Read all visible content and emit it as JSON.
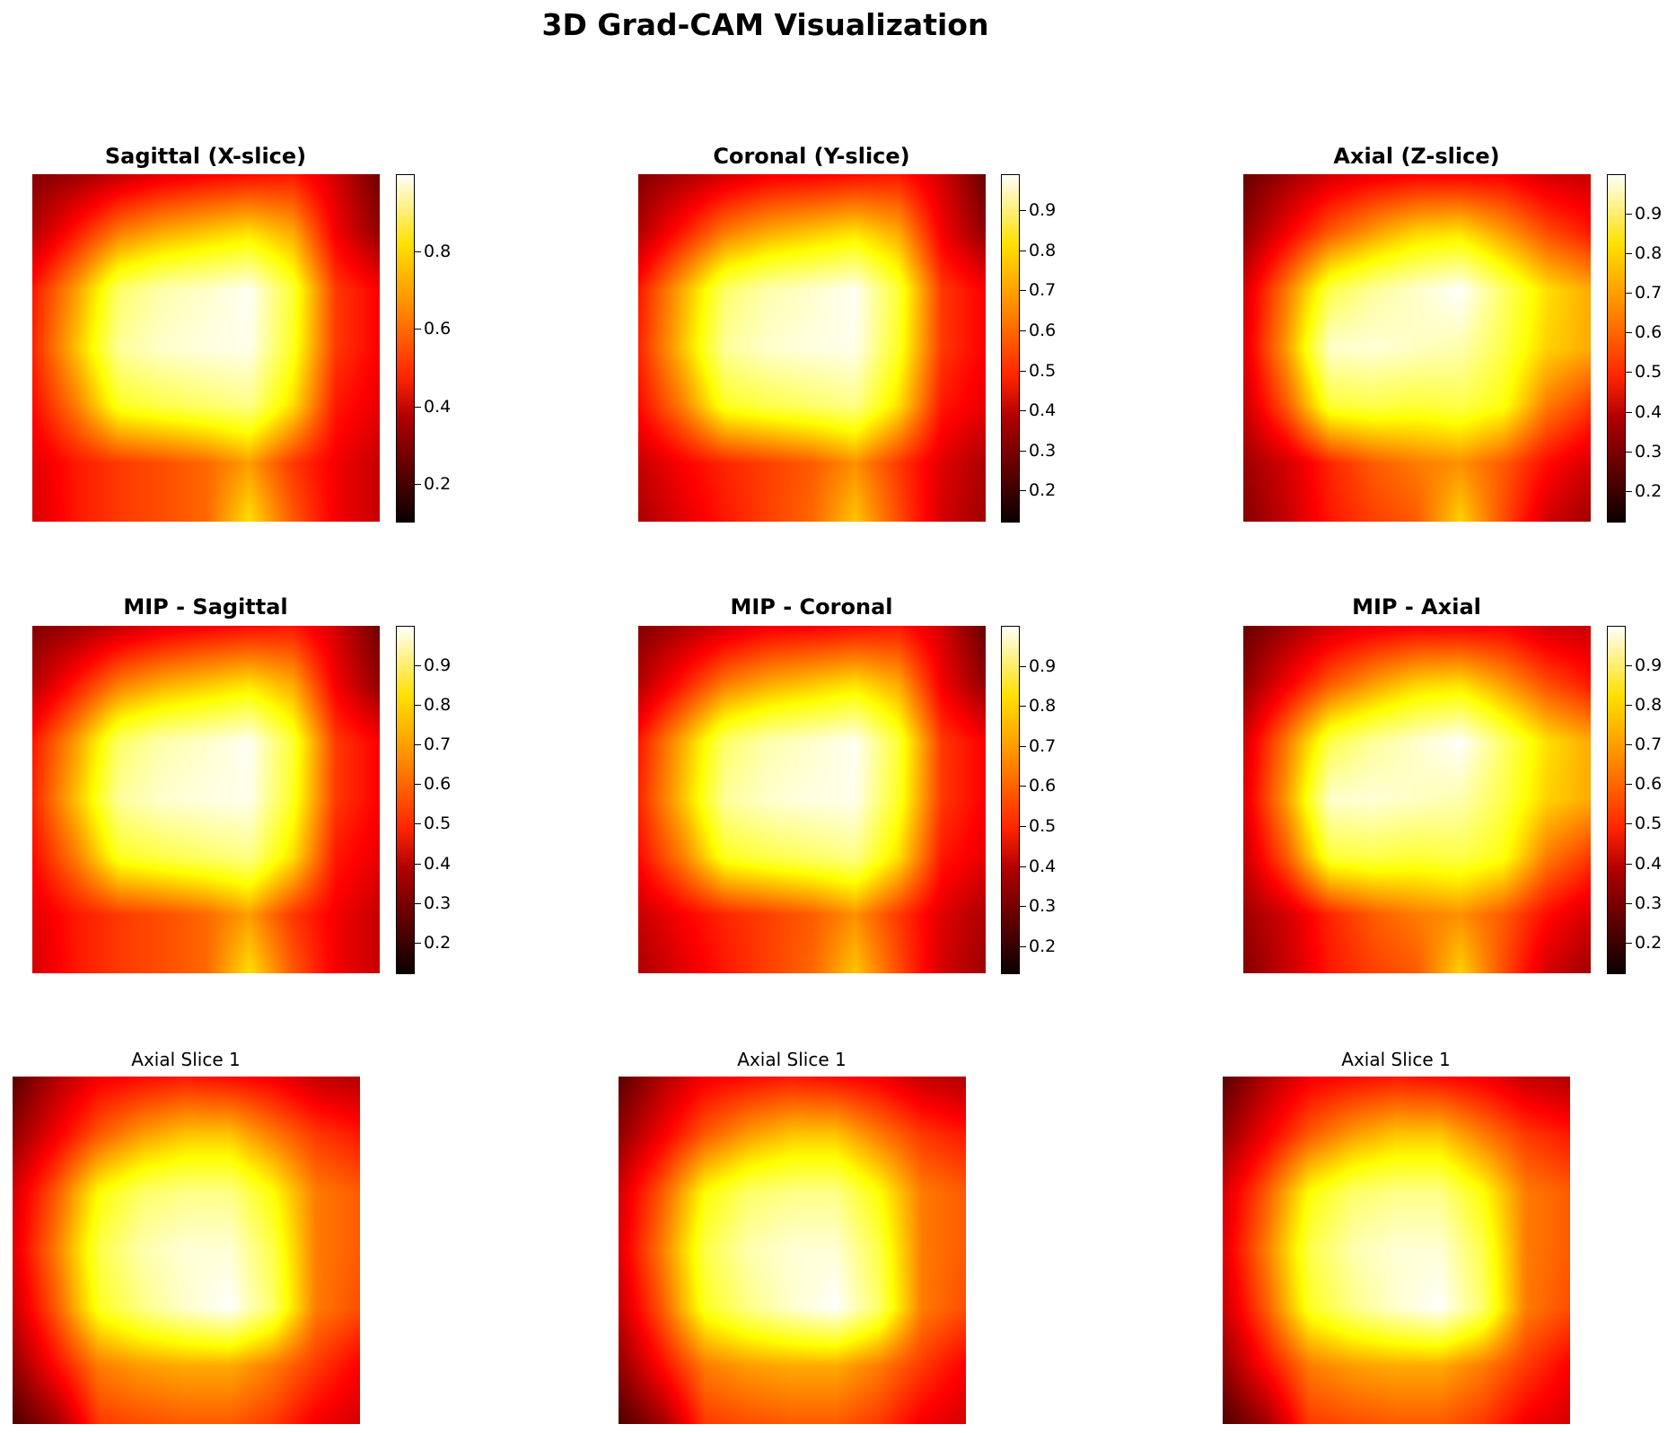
{
  "figure": {
    "title": "3D Grad-CAM Visualization"
  },
  "chart_data": [
    {
      "type": "heatmap",
      "title": "Sagittal (X-slice)",
      "colormap": "hot",
      "title_style": "bold",
      "colorbar": {
        "min": 0.1,
        "max": 1.0,
        "ticks": [
          "0.2",
          "0.4",
          "0.6",
          "0.8"
        ]
      },
      "values": [
        [
          0.18,
          0.22,
          0.28,
          0.33,
          0.36,
          0.38,
          0.4,
          0.3,
          0.15
        ],
        [
          0.25,
          0.4,
          0.55,
          0.62,
          0.66,
          0.7,
          0.62,
          0.35,
          0.2
        ],
        [
          0.4,
          0.6,
          0.85,
          0.92,
          0.95,
          0.99,
          0.8,
          0.45,
          0.36
        ],
        [
          0.42,
          0.65,
          0.9,
          0.95,
          0.97,
          0.98,
          0.78,
          0.45,
          0.36
        ],
        [
          0.38,
          0.55,
          0.78,
          0.82,
          0.85,
          0.88,
          0.7,
          0.4,
          0.33
        ],
        [
          0.32,
          0.4,
          0.45,
          0.48,
          0.52,
          0.6,
          0.45,
          0.35,
          0.28
        ],
        [
          0.3,
          0.4,
          0.45,
          0.48,
          0.52,
          0.7,
          0.5,
          0.35,
          0.28
        ]
      ]
    },
    {
      "type": "heatmap",
      "title": "Coronal (Y-slice)",
      "colormap": "hot",
      "title_style": "bold",
      "colorbar": {
        "min": 0.12,
        "max": 0.99,
        "ticks": [
          "0.2",
          "0.3",
          "0.4",
          "0.5",
          "0.6",
          "0.7",
          "0.8",
          "0.9"
        ]
      },
      "values": [
        [
          0.18,
          0.24,
          0.3,
          0.35,
          0.36,
          0.38,
          0.4,
          0.3,
          0.14
        ],
        [
          0.25,
          0.4,
          0.55,
          0.62,
          0.66,
          0.7,
          0.62,
          0.35,
          0.2
        ],
        [
          0.4,
          0.62,
          0.85,
          0.92,
          0.95,
          0.99,
          0.8,
          0.45,
          0.36
        ],
        [
          0.42,
          0.65,
          0.9,
          0.95,
          0.97,
          0.98,
          0.78,
          0.45,
          0.36
        ],
        [
          0.38,
          0.55,
          0.78,
          0.82,
          0.85,
          0.88,
          0.7,
          0.4,
          0.33
        ],
        [
          0.28,
          0.36,
          0.42,
          0.46,
          0.5,
          0.58,
          0.45,
          0.32,
          0.24
        ],
        [
          0.24,
          0.32,
          0.4,
          0.46,
          0.52,
          0.66,
          0.48,
          0.3,
          0.22
        ]
      ]
    },
    {
      "type": "heatmap",
      "title": "Axial (Z-slice)",
      "colormap": "hot",
      "title_style": "bold",
      "colorbar": {
        "min": 0.12,
        "max": 1.0,
        "ticks": [
          "0.2",
          "0.3",
          "0.4",
          "0.5",
          "0.6",
          "0.7",
          "0.8",
          "0.9"
        ]
      },
      "values": [
        [
          0.14,
          0.22,
          0.3,
          0.34,
          0.36,
          0.36,
          0.36,
          0.3,
          0.28
        ],
        [
          0.2,
          0.35,
          0.5,
          0.6,
          0.68,
          0.7,
          0.6,
          0.48,
          0.4
        ],
        [
          0.3,
          0.55,
          0.82,
          0.9,
          0.95,
          1.0,
          0.85,
          0.7,
          0.62
        ],
        [
          0.32,
          0.6,
          0.95,
          0.96,
          0.94,
          0.92,
          0.82,
          0.68,
          0.62
        ],
        [
          0.28,
          0.5,
          0.8,
          0.82,
          0.8,
          0.82,
          0.76,
          0.55,
          0.45
        ],
        [
          0.22,
          0.3,
          0.42,
          0.5,
          0.55,
          0.58,
          0.5,
          0.38,
          0.3
        ],
        [
          0.18,
          0.28,
          0.4,
          0.46,
          0.5,
          0.68,
          0.48,
          0.3,
          0.22
        ]
      ]
    },
    {
      "type": "heatmap",
      "title": "MIP - Sagittal",
      "colormap": "hot",
      "title_style": "bold",
      "colorbar": {
        "min": 0.12,
        "max": 1.0,
        "ticks": [
          "0.2",
          "0.3",
          "0.4",
          "0.5",
          "0.6",
          "0.7",
          "0.8",
          "0.9"
        ]
      },
      "values": [
        [
          0.18,
          0.22,
          0.28,
          0.33,
          0.36,
          0.38,
          0.4,
          0.3,
          0.15
        ],
        [
          0.25,
          0.4,
          0.55,
          0.62,
          0.66,
          0.7,
          0.62,
          0.35,
          0.2
        ],
        [
          0.4,
          0.6,
          0.85,
          0.92,
          0.95,
          0.99,
          0.8,
          0.45,
          0.36
        ],
        [
          0.42,
          0.65,
          0.9,
          0.95,
          0.97,
          0.98,
          0.78,
          0.45,
          0.36
        ],
        [
          0.38,
          0.55,
          0.78,
          0.82,
          0.85,
          0.88,
          0.7,
          0.4,
          0.33
        ],
        [
          0.32,
          0.4,
          0.45,
          0.48,
          0.52,
          0.6,
          0.45,
          0.35,
          0.28
        ],
        [
          0.3,
          0.4,
          0.45,
          0.48,
          0.52,
          0.7,
          0.5,
          0.35,
          0.28
        ]
      ]
    },
    {
      "type": "heatmap",
      "title": "MIP - Coronal",
      "colormap": "hot",
      "title_style": "bold",
      "colorbar": {
        "min": 0.13,
        "max": 1.0,
        "ticks": [
          "0.2",
          "0.3",
          "0.4",
          "0.5",
          "0.6",
          "0.7",
          "0.8",
          "0.9"
        ]
      },
      "values": [
        [
          0.18,
          0.24,
          0.3,
          0.35,
          0.36,
          0.38,
          0.4,
          0.3,
          0.14
        ],
        [
          0.25,
          0.4,
          0.55,
          0.62,
          0.66,
          0.7,
          0.62,
          0.35,
          0.2
        ],
        [
          0.4,
          0.62,
          0.85,
          0.92,
          0.95,
          0.99,
          0.8,
          0.45,
          0.36
        ],
        [
          0.42,
          0.65,
          0.9,
          0.95,
          0.97,
          0.98,
          0.78,
          0.45,
          0.36
        ],
        [
          0.38,
          0.55,
          0.78,
          0.82,
          0.85,
          0.88,
          0.7,
          0.4,
          0.33
        ],
        [
          0.28,
          0.36,
          0.42,
          0.46,
          0.5,
          0.58,
          0.45,
          0.32,
          0.24
        ],
        [
          0.24,
          0.32,
          0.4,
          0.46,
          0.52,
          0.66,
          0.48,
          0.3,
          0.22
        ]
      ]
    },
    {
      "type": "heatmap",
      "title": "MIP - Axial",
      "colormap": "hot",
      "title_style": "bold",
      "colorbar": {
        "min": 0.12,
        "max": 1.0,
        "ticks": [
          "0.2",
          "0.3",
          "0.4",
          "0.5",
          "0.6",
          "0.7",
          "0.8",
          "0.9"
        ]
      },
      "values": [
        [
          0.14,
          0.22,
          0.3,
          0.34,
          0.36,
          0.36,
          0.36,
          0.3,
          0.28
        ],
        [
          0.2,
          0.35,
          0.5,
          0.6,
          0.68,
          0.7,
          0.6,
          0.48,
          0.4
        ],
        [
          0.3,
          0.55,
          0.82,
          0.9,
          0.95,
          1.0,
          0.85,
          0.7,
          0.62
        ],
        [
          0.32,
          0.6,
          0.95,
          0.96,
          0.94,
          0.92,
          0.82,
          0.68,
          0.62
        ],
        [
          0.28,
          0.5,
          0.8,
          0.82,
          0.8,
          0.82,
          0.76,
          0.55,
          0.45
        ],
        [
          0.22,
          0.3,
          0.42,
          0.5,
          0.55,
          0.58,
          0.5,
          0.38,
          0.3
        ],
        [
          0.18,
          0.28,
          0.4,
          0.46,
          0.5,
          0.68,
          0.48,
          0.3,
          0.22
        ]
      ]
    },
    {
      "type": "heatmap",
      "title": "Axial Slice 1",
      "colormap": "hot",
      "title_style": "normal",
      "colorbar": null,
      "values": [
        [
          0.12,
          0.25,
          0.35,
          0.38,
          0.4,
          0.38,
          0.35,
          0.28,
          0.25
        ],
        [
          0.2,
          0.35,
          0.5,
          0.6,
          0.66,
          0.66,
          0.55,
          0.45,
          0.4
        ],
        [
          0.3,
          0.5,
          0.75,
          0.85,
          0.88,
          0.88,
          0.75,
          0.55,
          0.5
        ],
        [
          0.32,
          0.55,
          0.82,
          0.92,
          0.96,
          0.96,
          0.82,
          0.55,
          0.5
        ],
        [
          0.28,
          0.5,
          0.78,
          0.88,
          0.95,
          1.0,
          0.85,
          0.55,
          0.48
        ],
        [
          0.2,
          0.38,
          0.55,
          0.6,
          0.62,
          0.62,
          0.55,
          0.45,
          0.36
        ],
        [
          0.1,
          0.22,
          0.45,
          0.48,
          0.5,
          0.5,
          0.45,
          0.35,
          0.3
        ]
      ]
    },
    {
      "type": "heatmap",
      "title": "Axial Slice 1",
      "colormap": "hot",
      "title_style": "normal",
      "colorbar": null,
      "values": [
        [
          0.12,
          0.25,
          0.35,
          0.38,
          0.4,
          0.38,
          0.35,
          0.28,
          0.25
        ],
        [
          0.2,
          0.35,
          0.5,
          0.6,
          0.66,
          0.66,
          0.55,
          0.45,
          0.4
        ],
        [
          0.3,
          0.5,
          0.75,
          0.85,
          0.88,
          0.88,
          0.75,
          0.55,
          0.5
        ],
        [
          0.32,
          0.55,
          0.82,
          0.92,
          0.96,
          0.96,
          0.82,
          0.55,
          0.5
        ],
        [
          0.28,
          0.5,
          0.78,
          0.88,
          0.95,
          1.0,
          0.85,
          0.55,
          0.48
        ],
        [
          0.2,
          0.38,
          0.55,
          0.6,
          0.62,
          0.62,
          0.55,
          0.45,
          0.36
        ],
        [
          0.1,
          0.22,
          0.45,
          0.48,
          0.5,
          0.5,
          0.45,
          0.35,
          0.3
        ]
      ]
    },
    {
      "type": "heatmap",
      "title": "Axial Slice 1",
      "colormap": "hot",
      "title_style": "normal",
      "colorbar": null,
      "values": [
        [
          0.12,
          0.25,
          0.35,
          0.38,
          0.4,
          0.38,
          0.35,
          0.28,
          0.25
        ],
        [
          0.2,
          0.35,
          0.5,
          0.6,
          0.66,
          0.66,
          0.55,
          0.45,
          0.4
        ],
        [
          0.3,
          0.5,
          0.75,
          0.85,
          0.88,
          0.88,
          0.75,
          0.55,
          0.5
        ],
        [
          0.32,
          0.55,
          0.82,
          0.92,
          0.96,
          0.96,
          0.82,
          0.55,
          0.5
        ],
        [
          0.28,
          0.5,
          0.78,
          0.88,
          0.95,
          1.0,
          0.85,
          0.55,
          0.48
        ],
        [
          0.2,
          0.38,
          0.55,
          0.6,
          0.62,
          0.62,
          0.55,
          0.45,
          0.36
        ],
        [
          0.1,
          0.22,
          0.45,
          0.48,
          0.5,
          0.5,
          0.45,
          0.35,
          0.3
        ]
      ]
    }
  ]
}
